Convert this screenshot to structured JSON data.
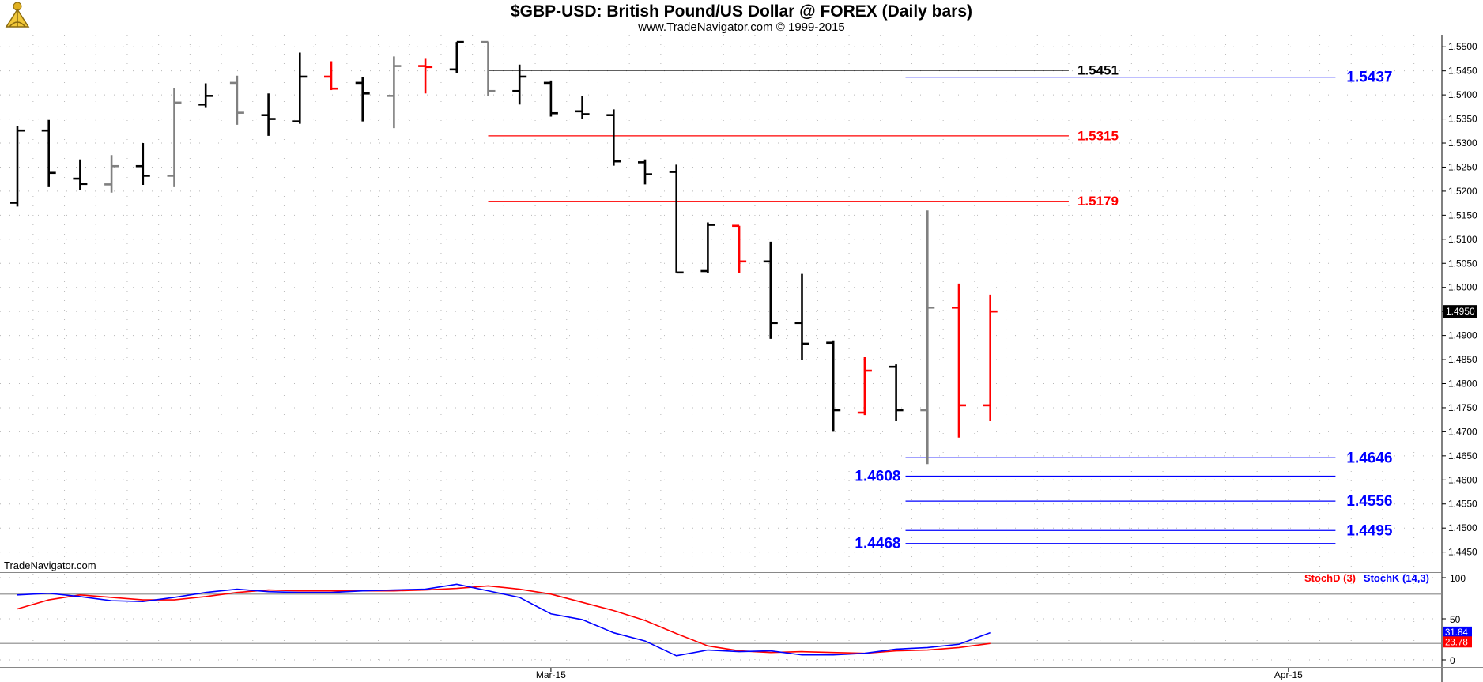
{
  "header": {
    "title": "$GBP-USD:  British Pound/US Dollar @ FOREX  (Daily bars)",
    "subtitle": "www.TradeNavigator.com © 1999-2015"
  },
  "watermark": "TradeNavigator.com",
  "icons": {
    "logo": "sextant-logo-icon"
  },
  "colors": {
    "up_bar": "#000000",
    "down_bar": "#000000",
    "red_bar": "#ff0000",
    "gray_bar": "#808080",
    "stoch_d": "#ff0000",
    "stoch_k": "#0000ff",
    "blue_level": "#0000ff",
    "red_level": "#ff0000"
  },
  "chart_data": [
    {
      "type": "ohlc",
      "title": "$GBP-USD:  British Pound/US Dollar @ FOREX  (Daily bars)",
      "x_labels": [
        {
          "label": "Mar-15",
          "bar": 17
        },
        {
          "label": "Apr-15",
          "bar": 40.5
        }
      ],
      "ylim": [
        1.441,
        1.5525
      ],
      "y_ticks": [
        1.445,
        1.45,
        1.455,
        1.46,
        1.465,
        1.47,
        1.475,
        1.48,
        1.485,
        1.49,
        1.495,
        1.5,
        1.505,
        1.51,
        1.515,
        1.52,
        1.525,
        1.53,
        1.535,
        1.54,
        1.545,
        1.55
      ],
      "last_price": "1.4950",
      "bars": [
        {
          "o": 1.5176,
          "h": 1.5335,
          "l": 1.5168,
          "c": 1.5326,
          "color": "black"
        },
        {
          "o": 1.5326,
          "h": 1.5348,
          "l": 1.521,
          "c": 1.5238,
          "color": "black"
        },
        {
          "o": 1.5226,
          "h": 1.5266,
          "l": 1.5203,
          "c": 1.5215,
          "color": "black"
        },
        {
          "o": 1.5214,
          "h": 1.5275,
          "l": 1.5197,
          "c": 1.5252,
          "color": "gray"
        },
        {
          "o": 1.5252,
          "h": 1.53,
          "l": 1.5213,
          "c": 1.5232,
          "color": "black"
        },
        {
          "o": 1.5232,
          "h": 1.5415,
          "l": 1.521,
          "c": 1.5384,
          "color": "gray"
        },
        {
          "o": 1.538,
          "h": 1.5424,
          "l": 1.5373,
          "c": 1.5398,
          "color": "black"
        },
        {
          "o": 1.5425,
          "h": 1.544,
          "l": 1.5338,
          "c": 1.5363,
          "color": "gray"
        },
        {
          "o": 1.5358,
          "h": 1.5403,
          "l": 1.5315,
          "c": 1.535,
          "color": "black"
        },
        {
          "o": 1.5345,
          "h": 1.5488,
          "l": 1.534,
          "c": 1.5438,
          "color": "black"
        },
        {
          "o": 1.5438,
          "h": 1.547,
          "l": 1.541,
          "c": 1.5413,
          "color": "red"
        },
        {
          "o": 1.5425,
          "h": 1.5437,
          "l": 1.5345,
          "c": 1.5403,
          "color": "black"
        },
        {
          "o": 1.5398,
          "h": 1.548,
          "l": 1.5331,
          "c": 1.546,
          "color": "gray"
        },
        {
          "o": 1.546,
          "h": 1.5475,
          "l": 1.5403,
          "c": 1.5458,
          "color": "red"
        },
        {
          "o": 1.5453,
          "h": 1.551,
          "l": 1.5445,
          "c": 1.551,
          "color": "black"
        },
        {
          "o": 1.551,
          "h": 1.551,
          "l": 1.5397,
          "c": 1.5408,
          "color": "gray"
        },
        {
          "o": 1.5408,
          "h": 1.5463,
          "l": 1.538,
          "c": 1.5438,
          "color": "black"
        },
        {
          "o": 1.5425,
          "h": 1.543,
          "l": 1.5355,
          "c": 1.5362,
          "color": "black"
        },
        {
          "o": 1.5366,
          "h": 1.5398,
          "l": 1.535,
          "c": 1.536,
          "color": "black"
        },
        {
          "o": 1.5358,
          "h": 1.537,
          "l": 1.5253,
          "c": 1.5262,
          "color": "black"
        },
        {
          "o": 1.526,
          "h": 1.5266,
          "l": 1.5214,
          "c": 1.5235,
          "color": "black"
        },
        {
          "o": 1.524,
          "h": 1.5255,
          "l": 1.5031,
          "c": 1.5031,
          "color": "black"
        },
        {
          "o": 1.5034,
          "h": 1.5135,
          "l": 1.503,
          "c": 1.513,
          "color": "black"
        },
        {
          "o": 1.5128,
          "h": 1.5128,
          "l": 1.503,
          "c": 1.5054,
          "color": "red"
        },
        {
          "o": 1.5054,
          "h": 1.5095,
          "l": 1.4893,
          "c": 1.4926,
          "color": "black"
        },
        {
          "o": 1.4926,
          "h": 1.5028,
          "l": 1.485,
          "c": 1.4883,
          "color": "black"
        },
        {
          "o": 1.4885,
          "h": 1.489,
          "l": 1.47,
          "c": 1.4745,
          "color": "black"
        },
        {
          "o": 1.474,
          "h": 1.4855,
          "l": 1.4735,
          "c": 1.4827,
          "color": "red"
        },
        {
          "o": 1.4835,
          "h": 1.484,
          "l": 1.4722,
          "c": 1.4745,
          "color": "black"
        },
        {
          "o": 1.4745,
          "h": 1.516,
          "l": 1.4633,
          "c": 1.4958,
          "color": "gray"
        },
        {
          "o": 1.4958,
          "h": 1.5008,
          "l": 1.4688,
          "c": 1.4755,
          "color": "red"
        },
        {
          "o": 1.4755,
          "h": 1.4985,
          "l": 1.4722,
          "c": 1.495,
          "color": "red"
        }
      ],
      "levels": [
        {
          "value": 1.5451,
          "label": "1.5451",
          "color": "black",
          "from_bar": 15,
          "to_bar": 33.5,
          "label_side": "right-mid"
        },
        {
          "value": 1.5437,
          "label": "1.5437",
          "color": "blue",
          "from_bar": 28.3,
          "to_bar": 42,
          "label_side": "right"
        },
        {
          "value": 1.5315,
          "label": "1.5315",
          "color": "red",
          "from_bar": 15,
          "to_bar": 33.5,
          "label_side": "right-mid"
        },
        {
          "value": 1.5179,
          "label": "1.5179",
          "color": "red",
          "from_bar": 15,
          "to_bar": 33.5,
          "label_side": "right-mid"
        },
        {
          "value": 1.4646,
          "label": "1.4646",
          "color": "blue",
          "from_bar": 28.3,
          "to_bar": 42,
          "label_side": "right"
        },
        {
          "value": 1.4608,
          "label": "1.4608",
          "color": "blue",
          "from_bar": 28.3,
          "to_bar": 42,
          "label_side": "left"
        },
        {
          "value": 1.4556,
          "label": "1.4556",
          "color": "blue",
          "from_bar": 28.3,
          "to_bar": 42,
          "label_side": "right"
        },
        {
          "value": 1.4495,
          "label": "1.4495",
          "color": "blue",
          "from_bar": 28.3,
          "to_bar": 42,
          "label_side": "right"
        },
        {
          "value": 1.4468,
          "label": "1.4468",
          "color": "blue",
          "from_bar": 28.3,
          "to_bar": 42,
          "label_side": "left"
        }
      ]
    },
    {
      "type": "line",
      "ylim": [
        0,
        100
      ],
      "y_ticks": [
        0,
        50,
        100
      ],
      "ref_lines": [
        80,
        20
      ],
      "series": [
        {
          "name": "StochD (3)",
          "color": "red",
          "values": [
            62,
            73,
            79,
            76,
            73,
            73,
            77,
            82,
            85,
            84,
            84,
            84,
            84,
            85,
            87,
            90,
            86,
            80,
            70,
            60,
            48,
            32,
            17,
            11,
            9,
            10,
            9,
            8,
            11,
            12,
            15,
            20
          ]
        },
        {
          "name": "StochK (14,3)",
          "color": "blue",
          "values": [
            79,
            81,
            77,
            72,
            71,
            76,
            82,
            86,
            83,
            82,
            82,
            84,
            85,
            86,
            92,
            84,
            76,
            56,
            49,
            33,
            23,
            5,
            12,
            10,
            11,
            6,
            6,
            8,
            13,
            15,
            19,
            33
          ]
        }
      ],
      "last_values": [
        "31.84",
        "23.78"
      ]
    }
  ]
}
